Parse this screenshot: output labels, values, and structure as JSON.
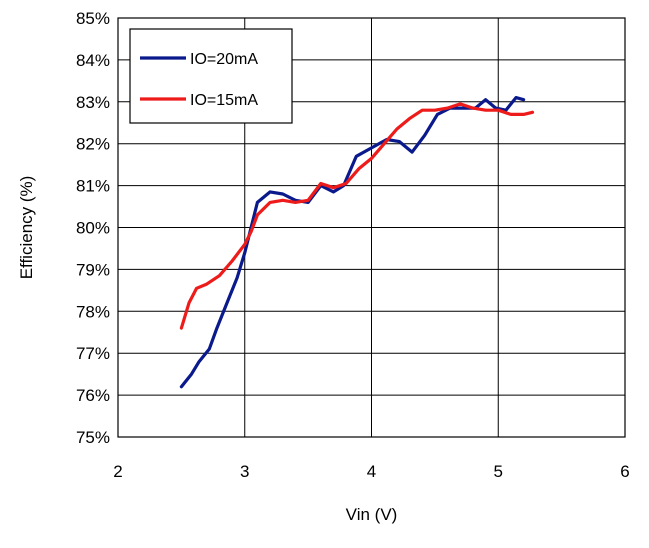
{
  "chart_data": {
    "type": "line",
    "xlabel": "Vin (V)",
    "ylabel": "Efficiency (%)",
    "xlim": [
      2,
      6
    ],
    "ylim": [
      75,
      85
    ],
    "x_ticks": [
      {
        "value": 2,
        "label": "2"
      },
      {
        "value": 3,
        "label": "3"
      },
      {
        "value": 4,
        "label": "4"
      },
      {
        "value": 5,
        "label": "5"
      },
      {
        "value": 6,
        "label": "6"
      }
    ],
    "y_ticks": [
      {
        "value": 75,
        "label": "75%"
      },
      {
        "value": 76,
        "label": "76%"
      },
      {
        "value": 77,
        "label": "77%"
      },
      {
        "value": 78,
        "label": "78%"
      },
      {
        "value": 79,
        "label": "79%"
      },
      {
        "value": 80,
        "label": "80%"
      },
      {
        "value": 81,
        "label": "81%"
      },
      {
        "value": 82,
        "label": "82%"
      },
      {
        "value": 83,
        "label": "83%"
      },
      {
        "value": 84,
        "label": "84%"
      },
      {
        "value": 85,
        "label": "85%"
      }
    ],
    "grid": true,
    "legend_position": "top-left",
    "series": [
      {
        "name": "IO=20mA",
        "color": "#0a1a8c",
        "points": [
          [
            2.5,
            76.2
          ],
          [
            2.58,
            76.5
          ],
          [
            2.64,
            76.8
          ],
          [
            2.72,
            77.1
          ],
          [
            2.78,
            77.6
          ],
          [
            2.86,
            78.2
          ],
          [
            2.94,
            78.8
          ],
          [
            3.0,
            79.4
          ],
          [
            3.05,
            80.0
          ],
          [
            3.1,
            80.6
          ],
          [
            3.2,
            80.85
          ],
          [
            3.3,
            80.8
          ],
          [
            3.4,
            80.65
          ],
          [
            3.5,
            80.6
          ],
          [
            3.6,
            81.0
          ],
          [
            3.7,
            80.85
          ],
          [
            3.78,
            81.0
          ],
          [
            3.88,
            81.7
          ],
          [
            4.0,
            81.9
          ],
          [
            4.12,
            82.1
          ],
          [
            4.22,
            82.05
          ],
          [
            4.32,
            81.8
          ],
          [
            4.42,
            82.2
          ],
          [
            4.52,
            82.7
          ],
          [
            4.62,
            82.85
          ],
          [
            4.72,
            82.85
          ],
          [
            4.82,
            82.85
          ],
          [
            4.9,
            83.05
          ],
          [
            4.98,
            82.85
          ],
          [
            5.06,
            82.8
          ],
          [
            5.14,
            83.1
          ],
          [
            5.2,
            83.05
          ]
        ]
      },
      {
        "name": "IO=15mA",
        "color": "#ee1b1b",
        "points": [
          [
            2.5,
            77.6
          ],
          [
            2.56,
            78.2
          ],
          [
            2.62,
            78.55
          ],
          [
            2.7,
            78.65
          ],
          [
            2.8,
            78.85
          ],
          [
            2.9,
            79.2
          ],
          [
            3.0,
            79.6
          ],
          [
            3.05,
            79.9
          ],
          [
            3.1,
            80.3
          ],
          [
            3.2,
            80.6
          ],
          [
            3.3,
            80.65
          ],
          [
            3.4,
            80.6
          ],
          [
            3.5,
            80.65
          ],
          [
            3.6,
            81.05
          ],
          [
            3.7,
            80.95
          ],
          [
            3.8,
            81.05
          ],
          [
            3.9,
            81.4
          ],
          [
            4.0,
            81.65
          ],
          [
            4.1,
            82.0
          ],
          [
            4.2,
            82.35
          ],
          [
            4.3,
            82.6
          ],
          [
            4.4,
            82.8
          ],
          [
            4.5,
            82.8
          ],
          [
            4.6,
            82.85
          ],
          [
            4.7,
            82.95
          ],
          [
            4.8,
            82.85
          ],
          [
            4.9,
            82.8
          ],
          [
            5.0,
            82.8
          ],
          [
            5.1,
            82.7
          ],
          [
            5.2,
            82.7
          ],
          [
            5.27,
            82.75
          ]
        ]
      }
    ]
  }
}
